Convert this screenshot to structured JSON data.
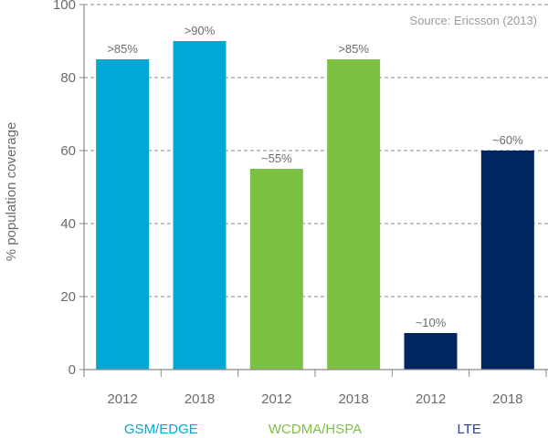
{
  "chart_data": {
    "type": "bar",
    "title": "",
    "source": "Source: Ericsson (2013)",
    "xlabel": "",
    "ylabel": "% population coverage",
    "ylim": [
      0,
      100
    ],
    "yticks": [
      0,
      20,
      40,
      60,
      80,
      100
    ],
    "grid": true,
    "categories": [
      "2012",
      "2018",
      "2012",
      "2018",
      "2012",
      "2018"
    ],
    "groups": [
      {
        "name": "GSM/EDGE",
        "color": "#00a8d6",
        "categories": [
          "2012",
          "2018"
        ],
        "values": [
          85,
          90
        ],
        "labels": [
          ">85%",
          ">90%"
        ]
      },
      {
        "name": "WCDMA/HSPA",
        "color": "#7dc142",
        "categories": [
          "2012",
          "2018"
        ],
        "values": [
          55,
          85
        ],
        "labels": [
          "~55%",
          ">85%"
        ]
      },
      {
        "name": "LTE",
        "color": "#002561",
        "categories": [
          "2012",
          "2018"
        ],
        "values": [
          10,
          60
        ],
        "labels": [
          "~10%",
          "~60%"
        ]
      }
    ],
    "group_label_colors": [
      "#00a8d6",
      "#7dc142",
      "#2e3f8f"
    ]
  }
}
